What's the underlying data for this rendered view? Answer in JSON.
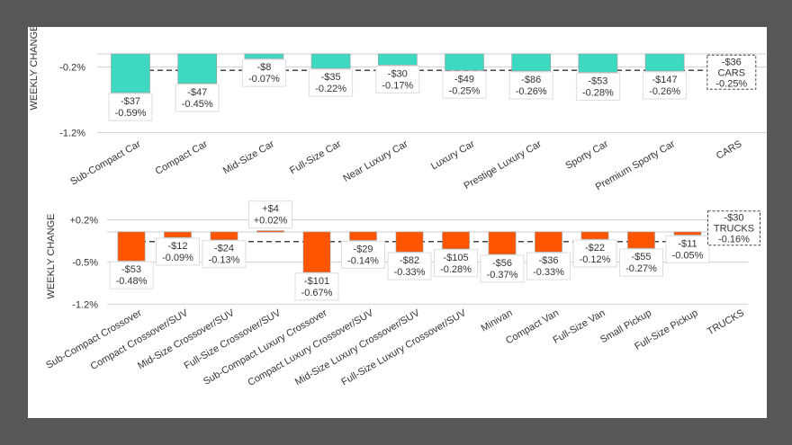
{
  "chart_data": [
    {
      "type": "bar",
      "ylabel": "WEEKLY CHANGE",
      "ylim": [
        -1.2,
        0
      ],
      "yticks": [
        "-0.2%",
        "-1.2%"
      ],
      "ytick_values": [
        -0.2,
        -1.2
      ],
      "grid": true,
      "bar_color": "#3dd9c1",
      "categories": [
        "Sub-Compact Car",
        "Compact Car",
        "Mid-Size Car",
        "Full-Size Car",
        "Near Luxury Car",
        "Luxury Car",
        "Prestige Luxury Car",
        "Sporty Car",
        "Premium Sporty Car",
        "CARS"
      ],
      "values_pct": [
        -0.59,
        -0.45,
        -0.07,
        -0.22,
        -0.17,
        -0.25,
        -0.26,
        -0.28,
        -0.26,
        null
      ],
      "labels_dollar": [
        "-$37",
        "-$47",
        "-$8",
        "-$35",
        "-$30",
        "-$49",
        "-$86",
        "-$53",
        "-$147"
      ],
      "labels_pct": [
        "-0.59%",
        "-0.45%",
        "-0.07%",
        "-0.22%",
        "-0.17%",
        "-0.25%",
        "-0.26%",
        "-0.28%",
        "-0.26%"
      ],
      "aggregate": {
        "name": "CARS",
        "dollar": "-$36",
        "pct": "-0.25%",
        "value": -0.25
      }
    },
    {
      "type": "bar",
      "ylabel": "WEEKLY CHANGE",
      "ylim": [
        -1.2,
        0.2
      ],
      "yticks": [
        "+0.2%",
        "-0.5%",
        "-1.2%"
      ],
      "ytick_values": [
        0.2,
        -0.5,
        -1.2
      ],
      "grid": true,
      "bar_color": "#ff5500",
      "categories": [
        "Sub-Compact Crossover",
        "Compact Crossover/SUV",
        "Mid-Size Crossover/SUV",
        "Full-Size Crossover/SUV",
        "Sub-Compact Luxury Crossover",
        "Compact Luxury Crossover/SUV",
        "Mid-Size Luxury Crossover/SUV",
        "Full-Size Luxury Crossover/SUV",
        "Minivan",
        "Compact Van",
        "Full-Size Van",
        "Small Pickup",
        "Full-Size Pickup",
        "TRUCKS"
      ],
      "values_pct": [
        -0.48,
        -0.09,
        -0.13,
        0.02,
        -0.67,
        -0.14,
        -0.33,
        -0.28,
        -0.37,
        -0.33,
        -0.12,
        -0.27,
        -0.05,
        null
      ],
      "labels_dollar": [
        "-$53",
        "-$12",
        "-$24",
        "+$4",
        "-$101",
        "-$29",
        "-$82",
        "-$105",
        "-$56",
        "-$36",
        "-$22",
        "-$55",
        "-$11"
      ],
      "labels_pct": [
        "-0.48%",
        "-0.09%",
        "-0.13%",
        "+0.02%",
        "-0.67%",
        "-0.14%",
        "-0.33%",
        "-0.28%",
        "-0.37%",
        "-0.33%",
        "-0.12%",
        "-0.27%",
        "-0.05%"
      ],
      "aggregate": {
        "name": "TRUCKS",
        "dollar": "-$30",
        "pct": "-0.16%",
        "value": -0.16
      }
    }
  ]
}
